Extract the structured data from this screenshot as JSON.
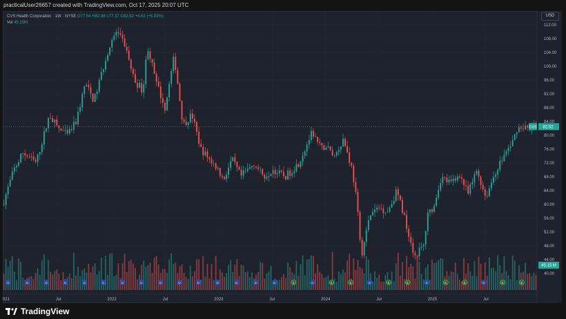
{
  "banner": {
    "text": "practicalUser26657 created with TradingView.com, Oct 17, 2025 20:07 UTC"
  },
  "legend": {
    "symbol_line": "CVS Health Corporation · 1W · NYSE",
    "open": "O77.54",
    "high": "H82.88",
    "low": "L77.37",
    "close": "C82.52",
    "change": "+4.62 (+5.93%)",
    "vol_label": "Vol",
    "vol_value": "45.15M"
  },
  "currency": "USD",
  "last_price": {
    "ticker": "CVS",
    "value": "82.52"
  },
  "last_volume": "45.15 M",
  "logo_text": "TradingView",
  "colors": {
    "up": "#26a69a",
    "down": "#ef5350",
    "background": "#1e222d",
    "grid": "#2a2e39",
    "text": "#b2b5be"
  },
  "chart_data": {
    "type": "candlestick",
    "series_name": "CVS Health Corporation",
    "interval": "1W",
    "ylim": [
      36,
      116
    ],
    "y_ticks": [
      40,
      44,
      48,
      52,
      56,
      60,
      64,
      68,
      72,
      76,
      80,
      84,
      88,
      92,
      96,
      100,
      104,
      108,
      112
    ],
    "x_tick_labels": [
      "2021",
      "Jul",
      "2022",
      "Jul",
      "2023",
      "Jul",
      "2024",
      "Jul",
      "2025",
      "Jul"
    ],
    "x_tick_months": [
      0,
      6,
      12,
      18,
      24,
      30,
      36,
      42,
      48,
      54
    ],
    "months_span": [
      -0.25,
      59.75
    ],
    "price_path_months": [
      -0.25,
      1,
      2,
      3.5,
      5,
      6,
      7,
      8,
      9,
      10,
      11.5,
      12.5,
      13.5,
      14.5,
      15.5,
      16,
      17,
      18,
      19,
      20,
      21,
      22,
      23,
      24,
      24.5,
      25.5,
      26.5,
      28,
      29,
      30,
      31.5,
      33,
      34.5,
      35.5,
      36,
      37,
      38,
      39,
      39.5,
      40,
      41,
      42,
      43,
      44,
      45,
      46,
      47,
      47.5,
      48,
      48.5,
      49,
      50,
      51,
      52,
      53,
      54,
      55,
      56,
      57,
      57.5,
      58.3
    ],
    "price_path_values": [
      60,
      70,
      75,
      72,
      86,
      82,
      80,
      84,
      95,
      90,
      104,
      110,
      106,
      96,
      93,
      106,
      95,
      88,
      103,
      83,
      86,
      76,
      73,
      70,
      67,
      73,
      68,
      72,
      68,
      70,
      68,
      72,
      81,
      76,
      77,
      74,
      79,
      70,
      61,
      45,
      57,
      59,
      58,
      64,
      55,
      45,
      48,
      57,
      59,
      63,
      68,
      66,
      69,
      63,
      70,
      62,
      69,
      74,
      78,
      82,
      82.5
    ],
    "volume_last": 45.15,
    "volume_unit": "M"
  },
  "event_markers": [
    "D",
    "D",
    "D",
    "D",
    "D",
    "D",
    "D",
    "D",
    "D",
    "D",
    "D",
    "D",
    "D",
    "D",
    "D",
    "E",
    "D",
    "E",
    "E",
    "D",
    "E",
    "E",
    "D",
    "E",
    "E",
    "D",
    "E",
    "E"
  ]
}
